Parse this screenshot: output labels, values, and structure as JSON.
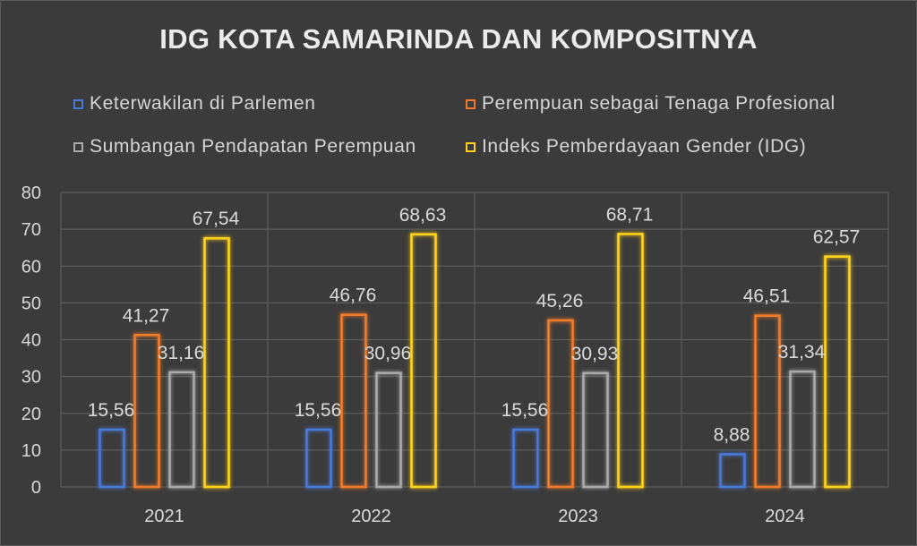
{
  "chart_data": {
    "type": "bar",
    "title": "IDG KOTA SAMARINDA DAN KOMPOSITNYA",
    "categories": [
      "2021",
      "2022",
      "2023",
      "2024"
    ],
    "series": [
      {
        "name": "Keterwakilan di Parlemen",
        "color": "#4a78d6",
        "values": [
          15.56,
          15.56,
          15.56,
          8.88
        ],
        "labels": [
          "15,56",
          "15,56",
          "15,56",
          "8,88"
        ]
      },
      {
        "name": "Perempuan sebagai Tenaga Profesional",
        "color": "#f07b2c",
        "values": [
          41.27,
          46.76,
          45.26,
          46.51
        ],
        "labels": [
          "41,27",
          "46,76",
          "45,26",
          "46,51"
        ]
      },
      {
        "name": "Sumbangan Pendapatan Perempuan",
        "color": "#a9a9a9",
        "values": [
          31.16,
          30.96,
          30.93,
          31.34
        ],
        "labels": [
          "31,16",
          "30,96",
          "30,93",
          "31,34"
        ]
      },
      {
        "name": "Indeks Pemberdayaan Gender (IDG)",
        "color": "#ffd21a",
        "values": [
          67.54,
          68.63,
          68.71,
          62.57
        ],
        "labels": [
          "67,54",
          "68,63",
          "68,71",
          "62,57"
        ]
      }
    ],
    "ylim": [
      0,
      80
    ],
    "yticks": [
      "0",
      "10",
      "20",
      "30",
      "40",
      "50",
      "60",
      "70",
      "80"
    ],
    "grid": true,
    "legend": "top"
  }
}
